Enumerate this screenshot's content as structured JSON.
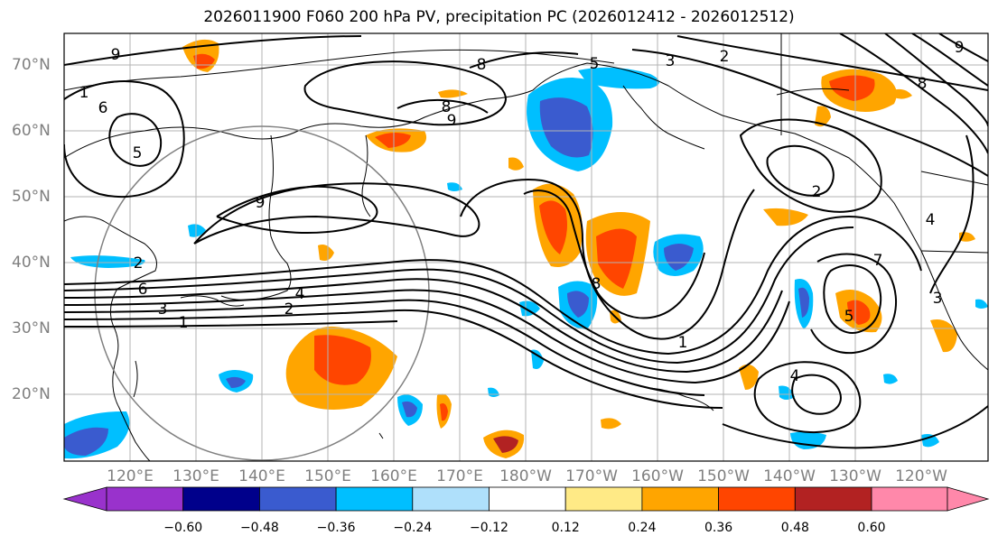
{
  "title": "2026011900 F060 200 hPa PV, precipitation PC (2026012412 - 2026012512)",
  "map": {
    "lat_ticks": [
      "70°N",
      "60°N",
      "50°N",
      "40°N",
      "30°N",
      "20°N"
    ],
    "lon_ticks": [
      "120°E",
      "130°E",
      "140°E",
      "150°E",
      "160°E",
      "170°E",
      "180°W",
      "170°W",
      "160°W",
      "150°W",
      "140°W",
      "130°W",
      "120°W"
    ],
    "contour_labels": [
      "9",
      "1",
      "6",
      "5",
      "8",
      "8",
      "9",
      "5",
      "3",
      "2",
      "8",
      "9",
      "9",
      "2",
      "2",
      "6",
      "3",
      "1",
      "2",
      "4",
      "8",
      "1",
      "4",
      "7",
      "5",
      "4",
      "3"
    ],
    "colors": {
      "land_outline": "#000000",
      "grid": "#b3b3b3",
      "circle": "#808080",
      "pv_contours": "#000000"
    }
  },
  "colorbar": {
    "labels": [
      "−0.60",
      "−0.48",
      "−0.36",
      "−0.24",
      "−0.12",
      "0.12",
      "0.24",
      "0.36",
      "0.48",
      "0.60"
    ],
    "colors": [
      "#9932cc",
      "#00008b",
      "#3a5bcf",
      "#00bfff",
      "#afe0fb",
      "#ffffff",
      "#ffea86",
      "#ffa500",
      "#ff4500",
      "#b22222",
      "#ff88aa"
    ]
  },
  "chart_data": {
    "type": "map",
    "fields": [
      "200 hPa PV",
      "precipitation PC"
    ],
    "valid_range": "2026012412 - 2026012512",
    "lat_range": [
      10,
      75
    ],
    "lon_range": [
      110,
      250
    ]
  }
}
